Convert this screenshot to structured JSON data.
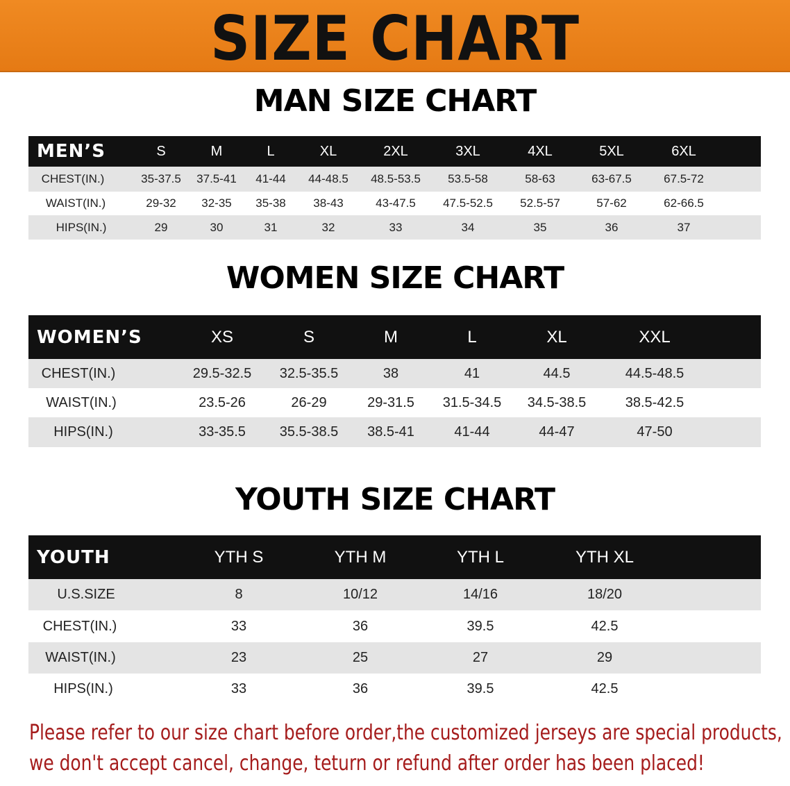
{
  "banner": {
    "title": "SIZE CHART",
    "color": "#ec841c"
  },
  "men": {
    "title": "MAN SIZE CHART",
    "header": "MEN’S",
    "sizes": [
      "S",
      "M",
      "L",
      "XL",
      "2XL",
      "3XL",
      "4XL",
      "5XL",
      "6XL"
    ],
    "rows": [
      {
        "label": "CHEST(IN.)",
        "values": [
          "35-37.5",
          "37.5-41",
          "41-44",
          "44-48.5",
          "48.5-53.5",
          "53.5-58",
          "58-63",
          "63-67.5",
          "67.5-72"
        ]
      },
      {
        "label": "WAIST(IN.)",
        "values": [
          "29-32",
          "32-35",
          "35-38",
          "38-43",
          "43-47.5",
          "47.5-52.5",
          "52.5-57",
          "57-62",
          "62-66.5"
        ]
      },
      {
        "label": "HIPS(IN.)",
        "values": [
          "29",
          "30",
          "31",
          "32",
          "33",
          "34",
          "35",
          "36",
          "37"
        ]
      }
    ]
  },
  "women": {
    "title": "WOMEN SIZE CHART",
    "header": "WOMEN’S",
    "sizes": [
      "XS",
      "S",
      "M",
      "L",
      "XL",
      "XXL"
    ],
    "rows": [
      {
        "label": "CHEST(IN.)",
        "values": [
          "29.5-32.5",
          "32.5-35.5",
          "38",
          "41",
          "44.5",
          "44.5-48.5"
        ]
      },
      {
        "label": "WAIST(IN.)",
        "values": [
          "23.5-26",
          "26-29",
          "29-31.5",
          "31.5-34.5",
          "34.5-38.5",
          "38.5-42.5"
        ]
      },
      {
        "label": "HIPS(IN.)",
        "values": [
          "33-35.5",
          "35.5-38.5",
          "38.5-41",
          "41-44",
          "44-47",
          "47-50"
        ]
      }
    ]
  },
  "youth": {
    "title": "YOUTH SIZE CHART",
    "header": "YOUTH",
    "sizes": [
      "YTH S",
      "YTH M",
      "YTH L",
      "YTH XL"
    ],
    "rows": [
      {
        "label": "U.S.SIZE",
        "values": [
          "8",
          "10/12",
          "14/16",
          "18/20"
        ]
      },
      {
        "label": "CHEST(IN.)",
        "values": [
          "33",
          "36",
          "39.5",
          "42.5"
        ]
      },
      {
        "label": "WAIST(IN.)",
        "values": [
          "23",
          "25",
          "27",
          "29"
        ]
      },
      {
        "label": "HIPS(IN.)",
        "values": [
          "33",
          "36",
          "39.5",
          "42.5"
        ]
      }
    ]
  },
  "note": {
    "line1": "Please refer to our size chart before order,the customized jerseys are special products,",
    "line2": "we don't accept cancel, change, teturn or refund after order has been placed!",
    "color": "#a51c1c"
  }
}
